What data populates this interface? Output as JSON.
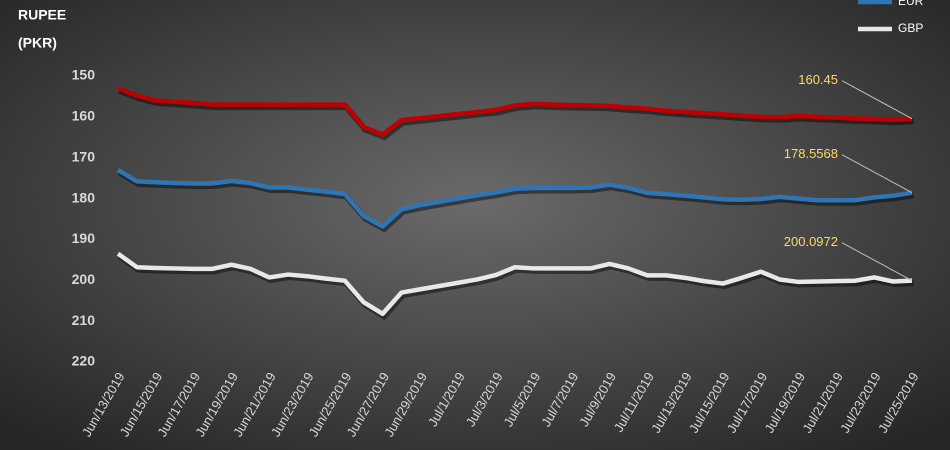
{
  "chart_data": {
    "type": "line",
    "ylabel": [
      "RUPEE",
      "(PKR)"
    ],
    "categories": [
      "Jun/13/2019",
      null,
      "Jun/15/2019",
      null,
      "Jun/17/2019",
      null,
      "Jun/19/2019",
      null,
      "Jun/21/2019",
      null,
      "Jun/23/2019",
      null,
      "Jun/25/2019",
      null,
      "Jun/27/2019",
      null,
      "Jun/29/2019",
      null,
      "Jul/1/2019",
      null,
      "Jul/3/2019",
      null,
      "Jul/5/2019",
      null,
      "Jul/7/2019",
      null,
      "Jul/9/2019",
      null,
      "Jul/11/2019",
      null,
      "Jul/13/2019",
      null,
      "Jul/15/2019",
      null,
      "Jul/17/2019",
      null,
      "Jul/19/2019",
      null,
      "Jul/21/2019",
      null,
      "Jul/23/2019",
      null,
      "Jul/25/2019"
    ],
    "series": [
      {
        "color": "#c00000",
        "values": [
          153,
          154.8,
          156,
          156.3,
          156.6,
          157,
          157,
          157,
          157,
          157,
          157,
          157,
          157,
          162.5,
          164.3,
          160.8,
          160.3,
          159.8,
          159.3,
          158.8,
          158.3,
          157.2,
          156.8,
          157,
          157.1,
          157.2,
          157.3,
          157.7,
          158,
          158.5,
          158.8,
          159.1,
          159.4,
          159.7,
          160,
          160.1,
          159.8,
          160,
          160.2,
          160.4,
          160.5,
          160.7,
          160.45
        ],
        "value_labels": [
          null,
          null,
          null,
          null,
          null,
          null,
          null,
          null,
          null,
          null,
          null,
          null,
          null,
          null,
          null,
          null,
          null,
          null,
          null,
          null,
          null,
          null,
          null,
          null,
          null,
          null,
          null,
          null,
          null,
          null,
          null,
          null,
          null,
          null,
          null,
          null,
          null,
          null,
          null,
          null,
          null,
          null,
          "160.45"
        ]
      },
      {
        "name": "EUR",
        "color": "#2e75b6",
        "values": [
          173,
          175.8,
          176,
          176.2,
          176.3,
          176.3,
          175.7,
          176.2,
          177.3,
          177.3,
          177.8,
          178.3,
          178.9,
          184.3,
          186.8,
          182.6,
          181.6,
          180.8,
          180,
          179.2,
          178.5,
          177.6,
          177.4,
          177.4,
          177.4,
          177.3,
          176.6,
          177.4,
          178.6,
          178.9,
          179.3,
          179.7,
          180.2,
          180.3,
          180.1,
          179.6,
          180,
          180.4,
          180.4,
          180.4,
          179.7,
          179.3,
          178.5568
        ],
        "value_labels": [
          null,
          null,
          null,
          null,
          null,
          null,
          null,
          null,
          null,
          null,
          null,
          null,
          null,
          null,
          null,
          null,
          null,
          null,
          null,
          null,
          null,
          null,
          null,
          null,
          null,
          null,
          null,
          null,
          null,
          null,
          null,
          null,
          null,
          null,
          null,
          null,
          null,
          null,
          null,
          null,
          null,
          null,
          "178.5568"
        ]
      },
      {
        "name": "GBP",
        "color": "#e8e8e8",
        "values": [
          193.5,
          196.8,
          197,
          197.1,
          197.2,
          197.2,
          196.2,
          197.2,
          199.3,
          198.6,
          199,
          199.6,
          200.1,
          205.4,
          208.2,
          203,
          202.2,
          201.4,
          200.6,
          199.8,
          198.7,
          196.8,
          197.1,
          197.1,
          197.1,
          197.1,
          196,
          197.1,
          198.8,
          198.8,
          199.4,
          200.2,
          200.8,
          199.4,
          197.9,
          199.8,
          200.4,
          200.3,
          200.2,
          200.1,
          199.3,
          200.3,
          200.0972
        ],
        "value_labels": [
          null,
          null,
          null,
          null,
          null,
          null,
          null,
          null,
          null,
          null,
          null,
          null,
          null,
          null,
          null,
          null,
          null,
          null,
          null,
          null,
          null,
          null,
          null,
          null,
          null,
          null,
          null,
          null,
          null,
          null,
          null,
          null,
          null,
          null,
          null,
          null,
          null,
          null,
          null,
          null,
          null,
          null,
          "200.0972"
        ]
      }
    ],
    "ylim": [
      150,
      220
    ],
    "yticks": [
      150,
      160,
      170,
      180,
      190,
      200,
      210,
      220
    ],
    "y_inverted": true,
    "grid": false,
    "legend": "top-right"
  }
}
